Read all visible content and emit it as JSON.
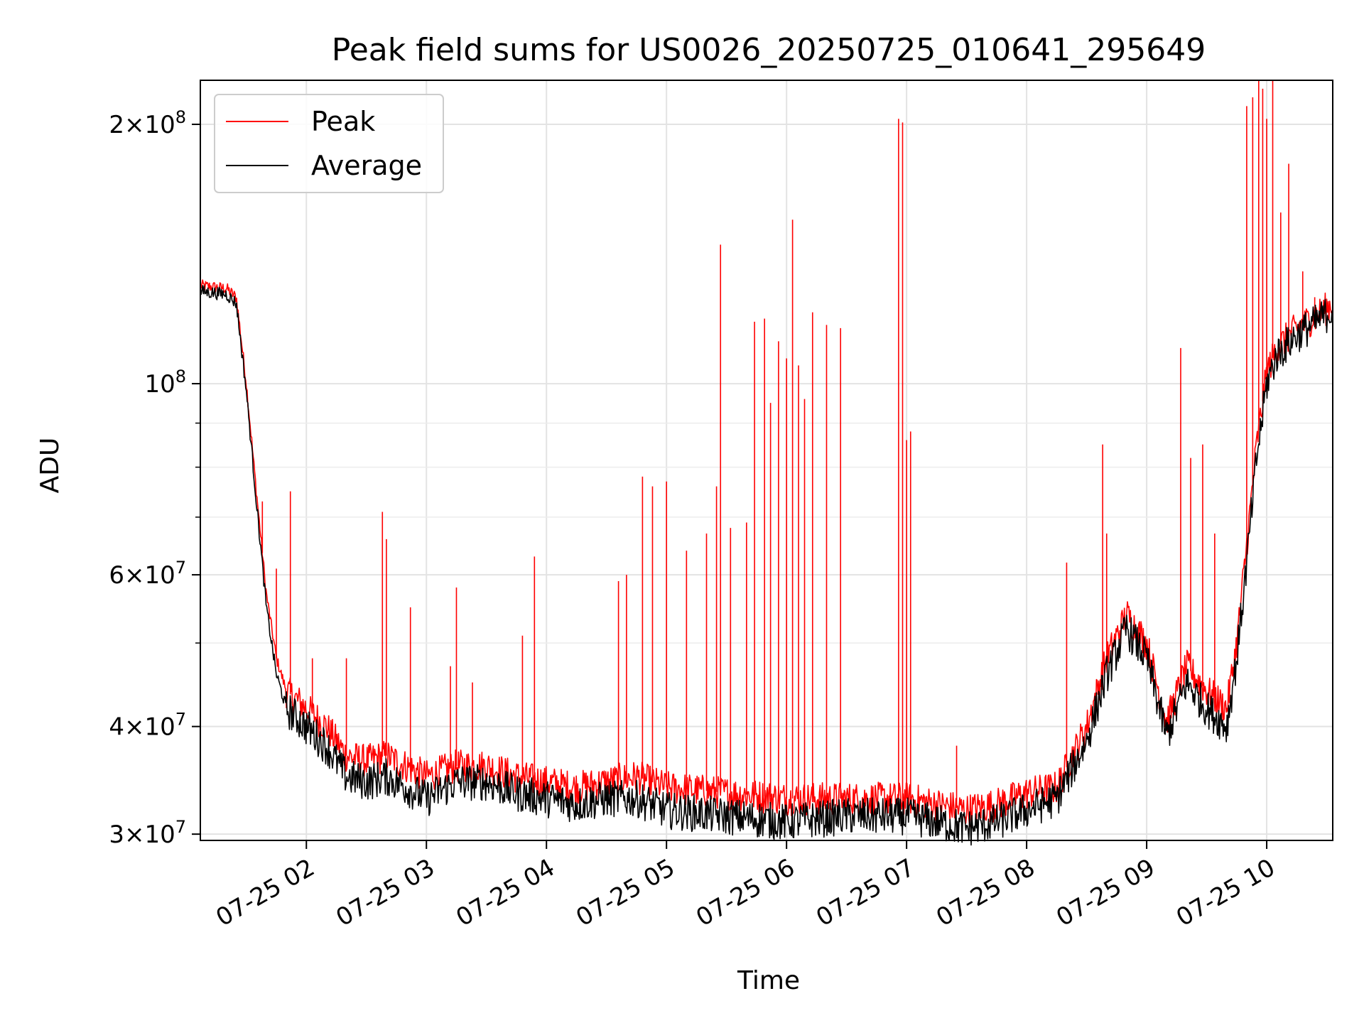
{
  "chart_data": {
    "type": "line",
    "title": "Peak field sums for US0026_20250725_010641_295649",
    "xlabel": "Time",
    "ylabel": "ADU",
    "yscale": "log",
    "xlim": [
      "2025-07-25 01:07",
      "2025-07-25 10:33"
    ],
    "ylim": [
      29500000,
      225000000
    ],
    "grid": true,
    "legend": {
      "placement": "upper-left",
      "entries": [
        "Peak",
        "Average"
      ]
    },
    "x_ticks": [
      {
        "value": "2025-07-25 02:00",
        "label": "07-25 02"
      },
      {
        "value": "2025-07-25 03:00",
        "label": "07-25 03"
      },
      {
        "value": "2025-07-25 04:00",
        "label": "07-25 04"
      },
      {
        "value": "2025-07-25 05:00",
        "label": "07-25 05"
      },
      {
        "value": "2025-07-25 06:00",
        "label": "07-25 06"
      },
      {
        "value": "2025-07-25 07:00",
        "label": "07-25 07"
      },
      {
        "value": "2025-07-25 08:00",
        "label": "07-25 08"
      },
      {
        "value": "2025-07-25 09:00",
        "label": "07-25 09"
      },
      {
        "value": "2025-07-25 10:00",
        "label": "07-25 10"
      }
    ],
    "y_ticks": [
      {
        "value": 30000000,
        "mant": "3",
        "exp": "7"
      },
      {
        "value": 40000000,
        "mant": "4",
        "exp": "7"
      },
      {
        "value": 60000000,
        "mant": "6",
        "exp": "7"
      },
      {
        "value": 100000000,
        "mant": "",
        "exp": "8"
      },
      {
        "value": 200000000,
        "mant": "2",
        "exp": "8"
      }
    ],
    "y_minor_ticks": [
      50000000,
      70000000,
      80000000,
      90000000
    ],
    "series": [
      {
        "name": "Peak",
        "color": "#ff0000",
        "x": [
          "2025-07-25 01:07",
          "2025-07-25 01:20",
          "2025-07-25 01:25",
          "2025-07-25 01:30",
          "2025-07-25 01:35",
          "2025-07-25 01:40",
          "2025-07-25 01:45",
          "2025-07-25 01:50",
          "2025-07-25 02:00",
          "2025-07-25 02:10",
          "2025-07-25 02:20",
          "2025-07-25 02:30",
          "2025-07-25 02:40",
          "2025-07-25 02:50",
          "2025-07-25 03:00",
          "2025-07-25 03:15",
          "2025-07-25 03:30",
          "2025-07-25 03:45",
          "2025-07-25 04:00",
          "2025-07-25 04:15",
          "2025-07-25 04:30",
          "2025-07-25 04:45",
          "2025-07-25 05:00",
          "2025-07-25 05:30",
          "2025-07-25 06:00",
          "2025-07-25 06:30",
          "2025-07-25 07:00",
          "2025-07-25 07:30",
          "2025-07-25 07:45",
          "2025-07-25 08:00",
          "2025-07-25 08:15",
          "2025-07-25 08:30",
          "2025-07-25 08:40",
          "2025-07-25 08:50",
          "2025-07-25 09:00",
          "2025-07-25 09:10",
          "2025-07-25 09:20",
          "2025-07-25 09:30",
          "2025-07-25 09:40",
          "2025-07-25 09:45",
          "2025-07-25 09:50",
          "2025-07-25 09:55",
          "2025-07-25 10:00",
          "2025-07-25 10:05",
          "2025-07-25 10:15",
          "2025-07-25 10:25",
          "2025-07-25 10:33"
        ],
        "y": [
          130000000,
          129000000,
          126000000,
          100000000,
          75000000,
          57000000,
          48000000,
          44000000,
          42000000,
          40000000,
          37000000,
          36500000,
          37000000,
          36000000,
          35000000,
          36000000,
          36000000,
          35000000,
          34500000,
          34000000,
          34500000,
          35000000,
          34000000,
          33500000,
          33000000,
          33000000,
          33000000,
          32000000,
          32500000,
          33500000,
          34000000,
          40000000,
          48000000,
          54000000,
          50000000,
          40500000,
          47000000,
          44000000,
          42000000,
          50000000,
          65000000,
          85000000,
          103000000,
          110000000,
          116000000,
          120000000,
          124000000
        ]
      },
      {
        "name": "Average",
        "color": "#000000",
        "x": [
          "2025-07-25 01:07",
          "2025-07-25 01:20",
          "2025-07-25 01:25",
          "2025-07-25 01:30",
          "2025-07-25 01:35",
          "2025-07-25 01:40",
          "2025-07-25 01:45",
          "2025-07-25 01:50",
          "2025-07-25 02:00",
          "2025-07-25 02:10",
          "2025-07-25 02:20",
          "2025-07-25 02:30",
          "2025-07-25 02:40",
          "2025-07-25 02:50",
          "2025-07-25 03:00",
          "2025-07-25 03:15",
          "2025-07-25 03:30",
          "2025-07-25 03:45",
          "2025-07-25 04:00",
          "2025-07-25 04:15",
          "2025-07-25 04:30",
          "2025-07-25 04:45",
          "2025-07-25 05:00",
          "2025-07-25 05:30",
          "2025-07-25 06:00",
          "2025-07-25 06:30",
          "2025-07-25 07:00",
          "2025-07-25 07:30",
          "2025-07-25 07:45",
          "2025-07-25 08:00",
          "2025-07-25 08:15",
          "2025-07-25 08:30",
          "2025-07-25 08:40",
          "2025-07-25 08:50",
          "2025-07-25 09:00",
          "2025-07-25 09:10",
          "2025-07-25 09:20",
          "2025-07-25 09:30",
          "2025-07-25 09:40",
          "2025-07-25 09:45",
          "2025-07-25 09:50",
          "2025-07-25 09:55",
          "2025-07-25 10:00",
          "2025-07-25 10:05",
          "2025-07-25 10:15",
          "2025-07-25 10:25",
          "2025-07-25 10:33"
        ],
        "y": [
          128000000,
          127000000,
          124000000,
          98000000,
          73000000,
          55000000,
          46000000,
          42000000,
          40000000,
          38000000,
          35000000,
          34500000,
          35000000,
          34000000,
          33000000,
          34500000,
          34500000,
          33500000,
          33000000,
          32500000,
          33000000,
          33000000,
          32000000,
          31500000,
          31000000,
          31500000,
          31500000,
          30500000,
          31000000,
          32000000,
          33000000,
          38500000,
          46000000,
          52000000,
          48000000,
          39000000,
          45000000,
          42000000,
          40000000,
          48000000,
          62000000,
          82000000,
          100000000,
          108000000,
          114000000,
          118000000,
          122000000
        ]
      }
    ],
    "peak_spikes": [
      {
        "x": "2025-07-25 01:38",
        "y": 73000000
      },
      {
        "x": "2025-07-25 01:45",
        "y": 61000000
      },
      {
        "x": "2025-07-25 01:52",
        "y": 75000000
      },
      {
        "x": "2025-07-25 02:03",
        "y": 48000000
      },
      {
        "x": "2025-07-25 02:20",
        "y": 48000000
      },
      {
        "x": "2025-07-25 02:38",
        "y": 71000000
      },
      {
        "x": "2025-07-25 02:40",
        "y": 66000000
      },
      {
        "x": "2025-07-25 02:52",
        "y": 55000000
      },
      {
        "x": "2025-07-25 03:12",
        "y": 47000000
      },
      {
        "x": "2025-07-25 03:15",
        "y": 58000000
      },
      {
        "x": "2025-07-25 03:23",
        "y": 45000000
      },
      {
        "x": "2025-07-25 03:48",
        "y": 51000000
      },
      {
        "x": "2025-07-25 03:54",
        "y": 63000000
      },
      {
        "x": "2025-07-25 04:36",
        "y": 59000000
      },
      {
        "x": "2025-07-25 04:40",
        "y": 60000000
      },
      {
        "x": "2025-07-25 04:48",
        "y": 78000000
      },
      {
        "x": "2025-07-25 04:53",
        "y": 76000000
      },
      {
        "x": "2025-07-25 05:00",
        "y": 77000000
      },
      {
        "x": "2025-07-25 05:10",
        "y": 64000000
      },
      {
        "x": "2025-07-25 05:20",
        "y": 67000000
      },
      {
        "x": "2025-07-25 05:25",
        "y": 76000000
      },
      {
        "x": "2025-07-25 05:27",
        "y": 145000000
      },
      {
        "x": "2025-07-25 05:32",
        "y": 68000000
      },
      {
        "x": "2025-07-25 05:40",
        "y": 69000000
      },
      {
        "x": "2025-07-25 05:44",
        "y": 118000000
      },
      {
        "x": "2025-07-25 05:49",
        "y": 119000000
      },
      {
        "x": "2025-07-25 05:52",
        "y": 95000000
      },
      {
        "x": "2025-07-25 05:56",
        "y": 112000000
      },
      {
        "x": "2025-07-25 06:00",
        "y": 107000000
      },
      {
        "x": "2025-07-25 06:03",
        "y": 155000000
      },
      {
        "x": "2025-07-25 06:06",
        "y": 105000000
      },
      {
        "x": "2025-07-25 06:09",
        "y": 96000000
      },
      {
        "x": "2025-07-25 06:13",
        "y": 121000000
      },
      {
        "x": "2025-07-25 06:20",
        "y": 117000000
      },
      {
        "x": "2025-07-25 06:27",
        "y": 116000000
      },
      {
        "x": "2025-07-25 06:56",
        "y": 203000000
      },
      {
        "x": "2025-07-25 06:58",
        "y": 201000000
      },
      {
        "x": "2025-07-25 07:00",
        "y": 86000000
      },
      {
        "x": "2025-07-25 07:02",
        "y": 88000000
      },
      {
        "x": "2025-07-25 07:25",
        "y": 38000000
      },
      {
        "x": "2025-07-25 08:20",
        "y": 62000000
      },
      {
        "x": "2025-07-25 08:38",
        "y": 85000000
      },
      {
        "x": "2025-07-25 08:40",
        "y": 67000000
      },
      {
        "x": "2025-07-25 09:17",
        "y": 110000000
      },
      {
        "x": "2025-07-25 09:22",
        "y": 82000000
      },
      {
        "x": "2025-07-25 09:28",
        "y": 85000000
      },
      {
        "x": "2025-07-25 09:34",
        "y": 67000000
      },
      {
        "x": "2025-07-25 09:50",
        "y": 210000000
      },
      {
        "x": "2025-07-25 09:53",
        "y": 215000000
      },
      {
        "x": "2025-07-25 09:56",
        "y": 225000000
      },
      {
        "x": "2025-07-25 09:58",
        "y": 220000000
      },
      {
        "x": "2025-07-25 10:00",
        "y": 203000000
      },
      {
        "x": "2025-07-25 10:03",
        "y": 225000000
      },
      {
        "x": "2025-07-25 10:07",
        "y": 158000000
      },
      {
        "x": "2025-07-25 10:11",
        "y": 180000000
      },
      {
        "x": "2025-07-25 10:18",
        "y": 135000000
      },
      {
        "x": "2025-07-25 10:24",
        "y": 126000000
      }
    ]
  }
}
